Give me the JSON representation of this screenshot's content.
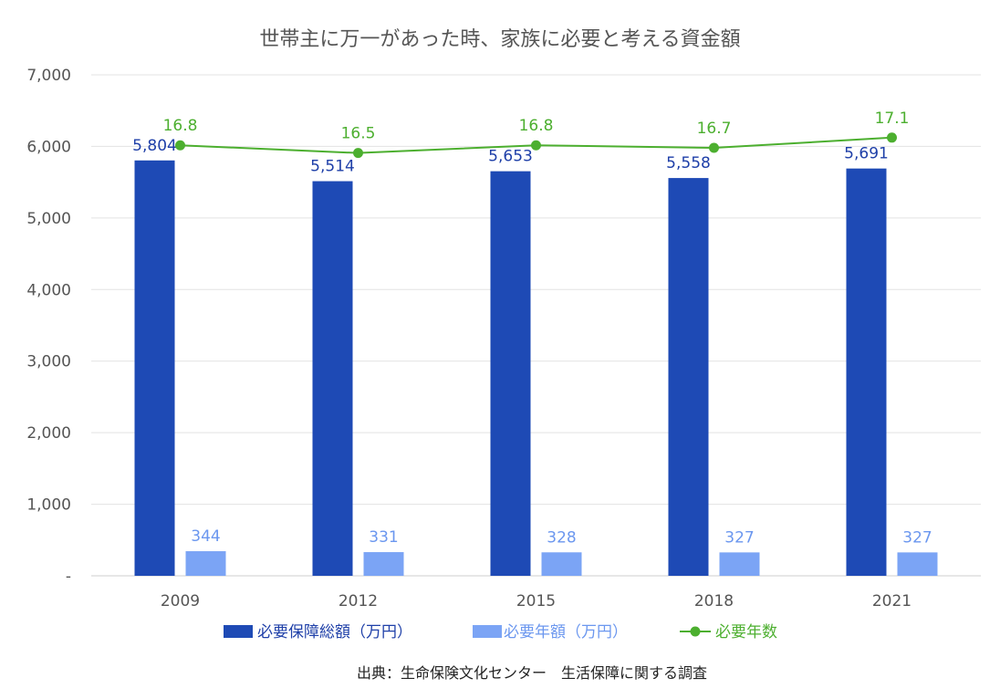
{
  "chart_data": {
    "type": "bar",
    "title": "世帯主に万一があった時、家族に必要と考える資金額",
    "categories": [
      "2009",
      "2012",
      "2015",
      "2018",
      "2021"
    ],
    "ylim": [
      0,
      7000
    ],
    "y_ticks": [
      {
        "value": 0,
        "label": "-"
      },
      {
        "value": 1000,
        "label": "1,000"
      },
      {
        "value": 2000,
        "label": "2,000"
      },
      {
        "value": 3000,
        "label": "3,000"
      },
      {
        "value": 4000,
        "label": "4,000"
      },
      {
        "value": 5000,
        "label": "5,000"
      },
      {
        "value": 6000,
        "label": "6,000"
      },
      {
        "value": 7000,
        "label": "7,000"
      }
    ],
    "grid": true,
    "legend_position": "bottom",
    "series": [
      {
        "name": "必要保障総額（万円）",
        "type": "bar",
        "color": "#1e4ab5",
        "values": [
          5804,
          5514,
          5653,
          5558,
          5691
        ],
        "labels": [
          "5,804",
          "5,514",
          "5,653",
          "5,558",
          "5,691"
        ]
      },
      {
        "name": "必要年額（万円）",
        "type": "bar",
        "color": "#7ba4f5",
        "values": [
          344,
          331,
          328,
          327,
          327
        ],
        "labels": [
          "344",
          "331",
          "328",
          "327",
          "327"
        ]
      },
      {
        "name": "必要年数",
        "type": "line",
        "color": "#4caf2f",
        "values": [
          16.8,
          16.5,
          16.8,
          16.7,
          17.1
        ],
        "labels": [
          "16.8",
          "16.5",
          "16.8",
          "16.7",
          "17.1"
        ]
      }
    ],
    "source": "出典：生命保険文化センター　生活保障に関する調査"
  }
}
